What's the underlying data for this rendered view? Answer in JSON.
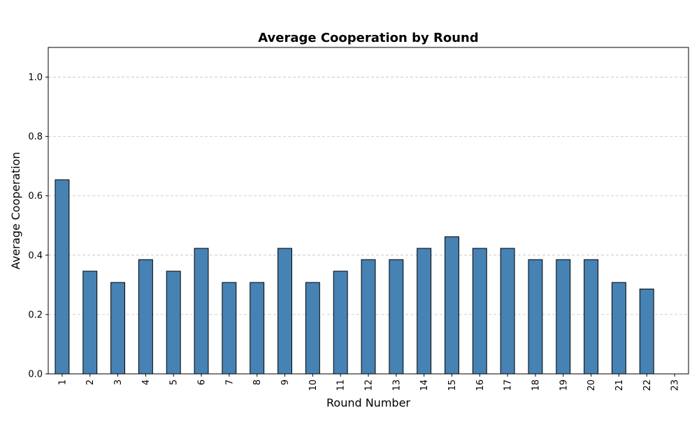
{
  "chart_data": {
    "type": "bar",
    "title": "Average Cooperation by Round",
    "xlabel": "Round Number",
    "ylabel": "Average Cooperation",
    "ylim": [
      0,
      1.1
    ],
    "yticks": [
      "0.0",
      "0.2",
      "0.4",
      "0.6",
      "0.8",
      "1.0"
    ],
    "grid": "y-dashed",
    "categories": [
      "1",
      "2",
      "3",
      "4",
      "5",
      "6",
      "7",
      "8",
      "9",
      "10",
      "11",
      "12",
      "13",
      "14",
      "15",
      "16",
      "17",
      "18",
      "19",
      "20",
      "21",
      "22",
      "23"
    ],
    "values": [
      0.654,
      0.346,
      0.308,
      0.385,
      0.346,
      0.423,
      0.308,
      0.308,
      0.423,
      0.308,
      0.346,
      0.385,
      0.385,
      0.423,
      0.462,
      0.423,
      0.423,
      0.385,
      0.385,
      0.385,
      0.308,
      0.286,
      0.0
    ],
    "colors": {
      "bar": "#4682b4",
      "edge": "#000000",
      "grid": "#c0c0c0"
    }
  }
}
